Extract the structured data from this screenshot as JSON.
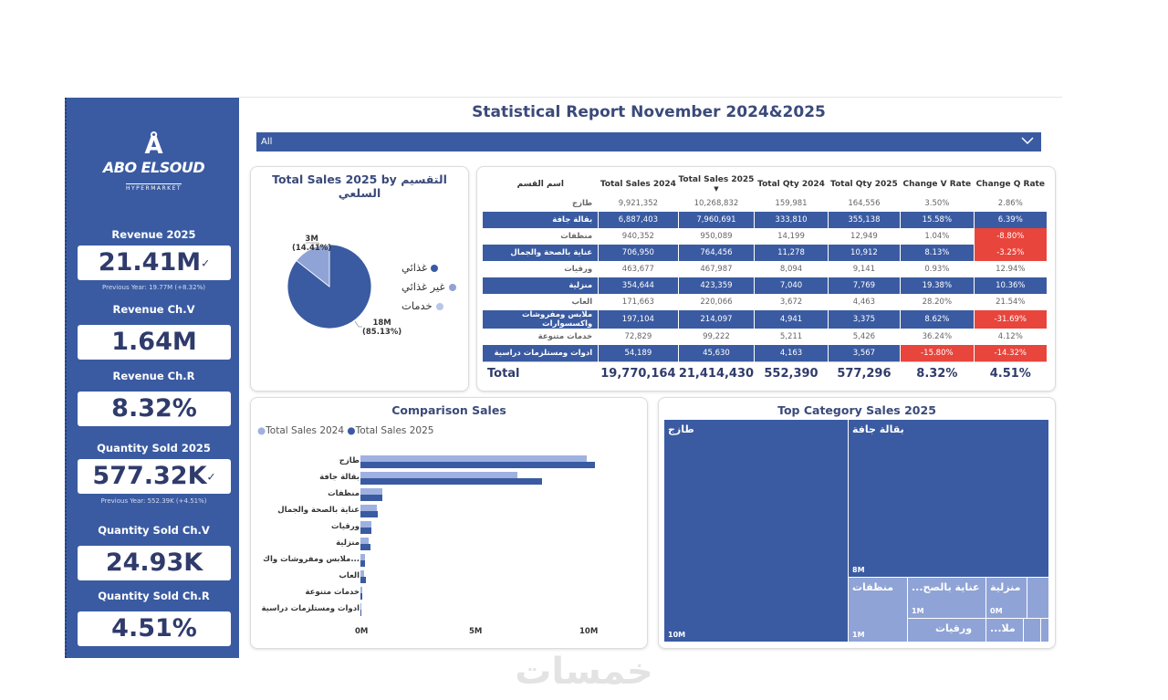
{
  "title": "Statistical Report November 2024&2025",
  "slicer": {
    "value": "All"
  },
  "brand": {
    "mark": "Å",
    "name": "ABO ELSOUD",
    "sub": "HYPERMARKET"
  },
  "kpis": [
    {
      "label": "Revenue 2025",
      "value": "21.41M",
      "sub": "Previous Year: 19.77M (+8.32%)",
      "has_chev": true
    },
    {
      "label": "Revenue Ch.V",
      "value": "1.64M",
      "sub": "",
      "has_chev": false
    },
    {
      "label": "Revenue Ch.R",
      "value": "8.32%",
      "sub": "",
      "has_chev": false
    },
    {
      "label": "Quantity Sold 2025",
      "value": "577.32K",
      "sub": "Previous Year: 552.39K (+4.51%)",
      "has_chev": true
    },
    {
      "label": "Quantity Sold Ch.V",
      "value": "24.93K",
      "sub": "",
      "has_chev": false
    },
    {
      "label": "Quantity Sold Ch.R",
      "value": "4.51%",
      "sub": "",
      "has_chev": false
    }
  ],
  "pie": {
    "title": "Total Sales 2025 by التقسيم السلعي",
    "legend": [
      "غذائي",
      "غير غذائي",
      "خدمات"
    ],
    "label_small": "3M",
    "label_small_pct": "(14.41%)",
    "label_big": "18M",
    "label_big_pct": "(85.13%)",
    "colors": [
      "#3a5ba2",
      "#8fa3d6",
      "#b9c6e8"
    ]
  },
  "table": {
    "headers": [
      "اسم القسم",
      "Total Sales 2024",
      "Total Sales 2025",
      "Total Qty 2024",
      "Total Qty 2025",
      "Change V Rate",
      "Change Q Rate"
    ],
    "rows": [
      {
        "cat": "طازج",
        "s24": "9,921,352",
        "s25": "10,268,832",
        "q24": "159,981",
        "q25": "164,556",
        "cv": "3.50%",
        "cq": "2.86%",
        "style": "light",
        "cv_red": false,
        "cq_red": false
      },
      {
        "cat": "بقالة جافة",
        "s24": "6,887,403",
        "s25": "7,960,691",
        "q24": "333,810",
        "q25": "355,138",
        "cv": "15.58%",
        "cq": "6.39%",
        "style": "dark",
        "cv_red": false,
        "cq_red": false
      },
      {
        "cat": "منظفات",
        "s24": "940,352",
        "s25": "950,089",
        "q24": "14,199",
        "q25": "12,949",
        "cv": "1.04%",
        "cq": "-8.80%",
        "style": "light",
        "cv_red": false,
        "cq_red": true
      },
      {
        "cat": "عناية بالصحة والجمال",
        "s24": "706,950",
        "s25": "764,456",
        "q24": "11,278",
        "q25": "10,912",
        "cv": "8.13%",
        "cq": "-3.25%",
        "style": "dark",
        "cv_red": false,
        "cq_red": true
      },
      {
        "cat": "ورقيات",
        "s24": "463,677",
        "s25": "467,987",
        "q24": "8,094",
        "q25": "9,141",
        "cv": "0.93%",
        "cq": "12.94%",
        "style": "light",
        "cv_red": false,
        "cq_red": false
      },
      {
        "cat": "منزلية",
        "s24": "354,644",
        "s25": "423,359",
        "q24": "7,040",
        "q25": "7,769",
        "cv": "19.38%",
        "cq": "10.36%",
        "style": "dark",
        "cv_red": false,
        "cq_red": false
      },
      {
        "cat": "العاب",
        "s24": "171,663",
        "s25": "220,066",
        "q24": "3,672",
        "q25": "4,463",
        "cv": "28.20%",
        "cq": "21.54%",
        "style": "light",
        "cv_red": false,
        "cq_red": false
      },
      {
        "cat": "ملابس ومفروشات واكسسوارات",
        "s24": "197,104",
        "s25": "214,097",
        "q24": "4,941",
        "q25": "3,375",
        "cv": "8.62%",
        "cq": "-31.69%",
        "style": "dark",
        "cv_red": false,
        "cq_red": true
      },
      {
        "cat": "خدمات متنوعة",
        "s24": "72,829",
        "s25": "99,222",
        "q24": "5,211",
        "q25": "5,426",
        "cv": "36.24%",
        "cq": "4.12%",
        "style": "light",
        "cv_red": false,
        "cq_red": false
      },
      {
        "cat": "ادوات ومستلزمات دراسية",
        "s24": "54,189",
        "s25": "45,630",
        "q24": "4,163",
        "q25": "3,567",
        "cv": "-15.80%",
        "cq": "-14.32%",
        "style": "dark",
        "cv_red": true,
        "cq_red": true
      }
    ],
    "total": {
      "label": "Total",
      "s24": "19,770,164",
      "s25": "21,414,430",
      "q24": "552,390",
      "q25": "577,296",
      "cv": "8.32%",
      "cq": "4.51%"
    }
  },
  "comparison": {
    "title": "Comparison Sales",
    "legend_2024": "Total Sales 2024",
    "legend_2025": "Total Sales 2025",
    "color_2024": "#9fb1e0",
    "color_2025": "#3a5ba2",
    "axis": [
      "0M",
      "5M",
      "10M"
    ]
  },
  "chart_data": {
    "type": "bar",
    "orientation": "horizontal",
    "categories": [
      "طازج",
      "بقالة جافة",
      "منظفات",
      "عناية بالصحة والجمال",
      "ورقيات",
      "منزلية",
      "...ملابس ومفروشات واك",
      "العاب",
      "خدمات متنوعة",
      "ادوات ومستلزمات دراسية"
    ],
    "series": [
      {
        "name": "Total Sales 2024",
        "values": [
          9921352,
          6887403,
          940352,
          706950,
          463677,
          354644,
          197104,
          171663,
          72829,
          54189
        ]
      },
      {
        "name": "Total Sales 2025",
        "values": [
          10268832,
          7960691,
          950089,
          764456,
          467987,
          423359,
          214097,
          220066,
          99222,
          45630
        ]
      }
    ],
    "title": "Comparison Sales",
    "xlim": [
      0,
      10000000
    ],
    "ticks": [
      "0M",
      "5M",
      "10M"
    ],
    "legend_position": "top-left"
  },
  "treemap": {
    "title": "Top Category Sales 2025",
    "cells": [
      {
        "name": "طازج",
        "value": "10M"
      },
      {
        "name": "بقالة جافة",
        "value": "8M"
      },
      {
        "name": "منظفات",
        "value": "1M"
      },
      {
        "name": "عناية بالصح...",
        "value": "1M"
      },
      {
        "name": "منزلية",
        "value": "0M"
      },
      {
        "name": "ورقيات",
        "value": ""
      },
      {
        "name": "ملا...",
        "value": ""
      }
    ]
  },
  "watermark": "خمسات"
}
